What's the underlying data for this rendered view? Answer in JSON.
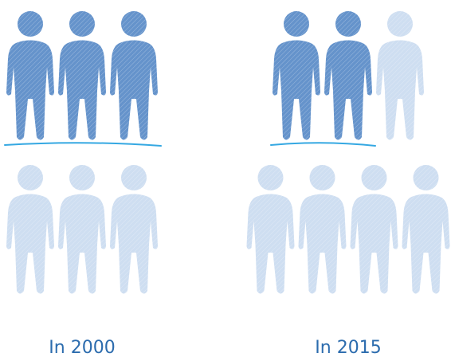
{
  "chart_data": {
    "type": "pictogram",
    "categories": [
      "In 2000",
      "In 2015"
    ],
    "values": [
      3,
      2
    ],
    "totals": [
      6,
      7
    ],
    "color": "#4a80c2",
    "empty_color": "#c6d8ee",
    "underline_color": "#35a8e2"
  }
}
